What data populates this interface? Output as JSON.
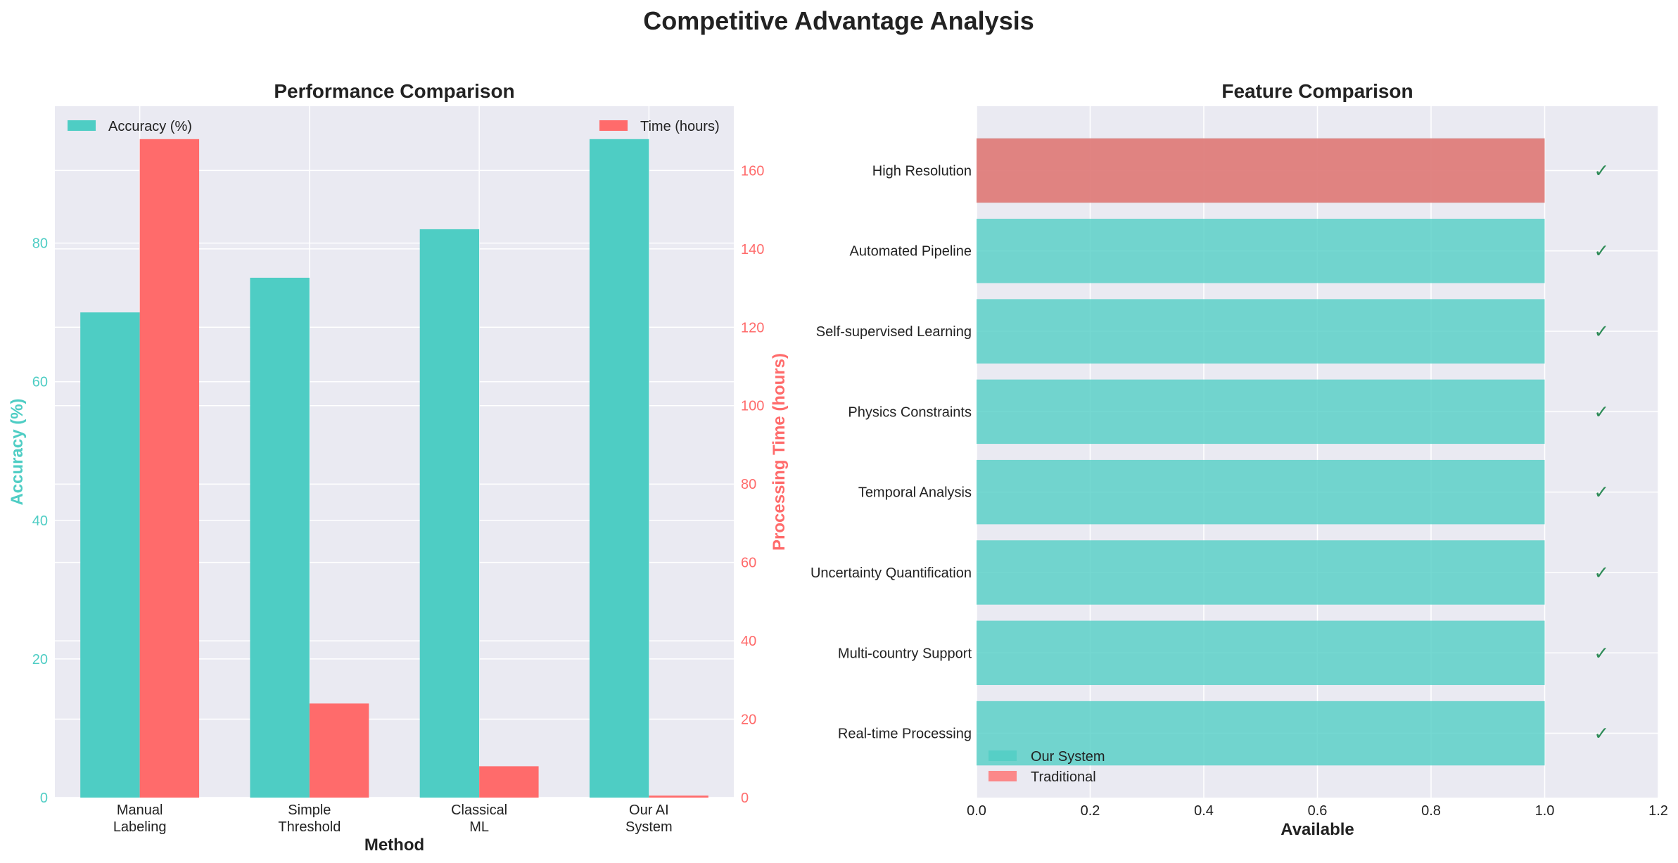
{
  "figure": {
    "title": "Competitive Advantage Analysis"
  },
  "colors": {
    "teal": "#4ECDC4",
    "red": "#FF6B6B",
    "check_green": "#2e8b57",
    "panel_bg": "#EAEAF2",
    "grid": "#FFFFFF",
    "text": "#222222"
  },
  "chart_data": [
    {
      "type": "bar",
      "title": "Performance Comparison",
      "xlabel": "Method",
      "ylabel": "Accuracy (%)",
      "ylabel_right": "Processing Time (hours)",
      "categories": [
        "Manual\nLabeling",
        "Simple\nThreshold",
        "Classical\nML",
        "Our AI\nSystem"
      ],
      "series": [
        {
          "name": "Accuracy (%)",
          "axis": "left",
          "color": "#4ECDC4",
          "values": [
            70,
            75,
            82,
            95
          ]
        },
        {
          "name": "Time (hours)",
          "axis": "right",
          "color": "#FF6B6B",
          "values": [
            168,
            24,
            8,
            0.5
          ]
        }
      ],
      "ylim": [
        0,
        99.75
      ],
      "yticks": [
        0,
        20,
        40,
        60,
        80
      ],
      "ylim_right": [
        0,
        176.4
      ],
      "yticks_right": [
        0,
        20,
        40,
        60,
        80,
        100,
        120,
        140,
        160
      ],
      "legend_left": "upper-left",
      "legend_right": "upper-right",
      "grid": true
    },
    {
      "type": "barh",
      "title": "Feature Comparison",
      "xlabel": "Available",
      "categories": [
        "High Resolution",
        "Automated Pipeline",
        "Self-supervised Learning",
        "Physics Constraints",
        "Temporal Analysis",
        "Uncertainty Quantification",
        "Multi-country Support",
        "Real-time Processing"
      ],
      "series": [
        {
          "name": "Our System",
          "color": "#4ECDC4",
          "values": [
            1,
            1,
            1,
            1,
            1,
            1,
            1,
            1
          ]
        },
        {
          "name": "Traditional",
          "color": "#FF6B6B",
          "values": [
            1,
            0,
            0,
            0,
            0,
            0,
            0,
            0
          ]
        }
      ],
      "check_marks": [
        "✓",
        "✓",
        "✓",
        "✓",
        "✓",
        "✓",
        "✓",
        "✓"
      ],
      "check_x": 1.1,
      "xlim": [
        0,
        1.2
      ],
      "xticks": [
        0.0,
        0.2,
        0.4,
        0.6,
        0.8,
        1.0,
        1.2
      ],
      "legend": "lower-left",
      "grid": true
    }
  ]
}
